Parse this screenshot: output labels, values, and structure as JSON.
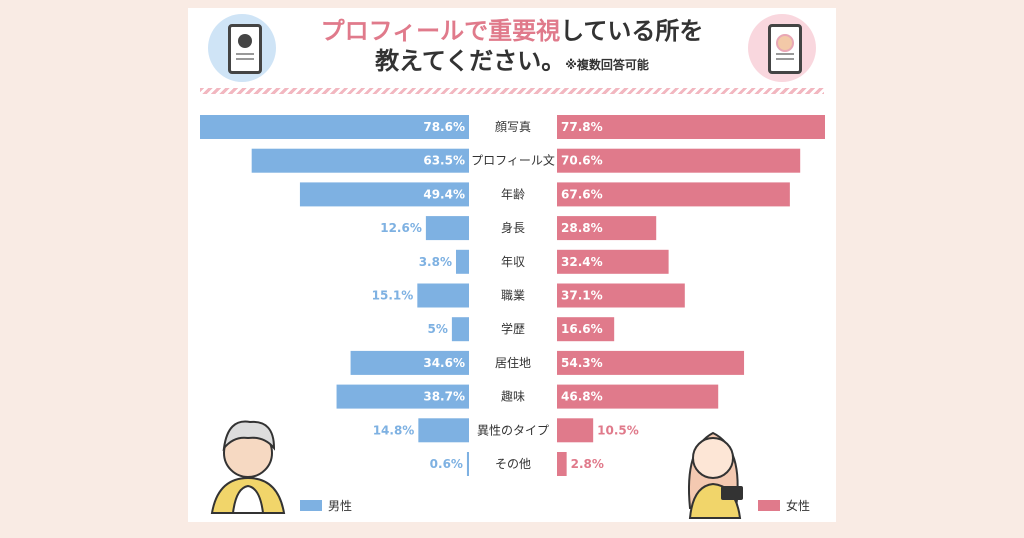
{
  "title": {
    "line1_highlight": "プロフィールで重要視",
    "line1_rest": "している所を",
    "line2": "教えてください。",
    "note": "※複数回答可能"
  },
  "chart_data": {
    "type": "bar",
    "orientation": "horizontal-butterfly",
    "categories": [
      "顔写真",
      "プロフィール文",
      "年齢",
      "身長",
      "年収",
      "職業",
      "学歴",
      "居住地",
      "趣味",
      "異性のタイプ",
      "その他"
    ],
    "series": [
      {
        "name": "男性",
        "color": "#7eb1e2",
        "values": [
          78.6,
          63.5,
          49.4,
          12.6,
          3.8,
          15.1,
          5,
          34.6,
          38.7,
          14.8,
          0.6
        ],
        "labels": [
          "78.6%",
          "63.5%",
          "49.4%",
          "12.6%",
          "3.8%",
          "15.1%",
          "5%",
          "34.6%",
          "38.7%",
          "14.8%",
          "0.6%"
        ]
      },
      {
        "name": "女性",
        "color": "#e07a8b",
        "values": [
          77.8,
          70.6,
          67.6,
          28.8,
          32.4,
          37.1,
          16.6,
          54.3,
          46.8,
          10.5,
          2.8
        ],
        "labels": [
          "77.8%",
          "70.6%",
          "67.6%",
          "28.8%",
          "32.4%",
          "37.1%",
          "16.6%",
          "54.3%",
          "46.8%",
          "10.5%",
          "2.8%"
        ]
      }
    ],
    "legend": [
      "男性",
      "女性"
    ]
  }
}
